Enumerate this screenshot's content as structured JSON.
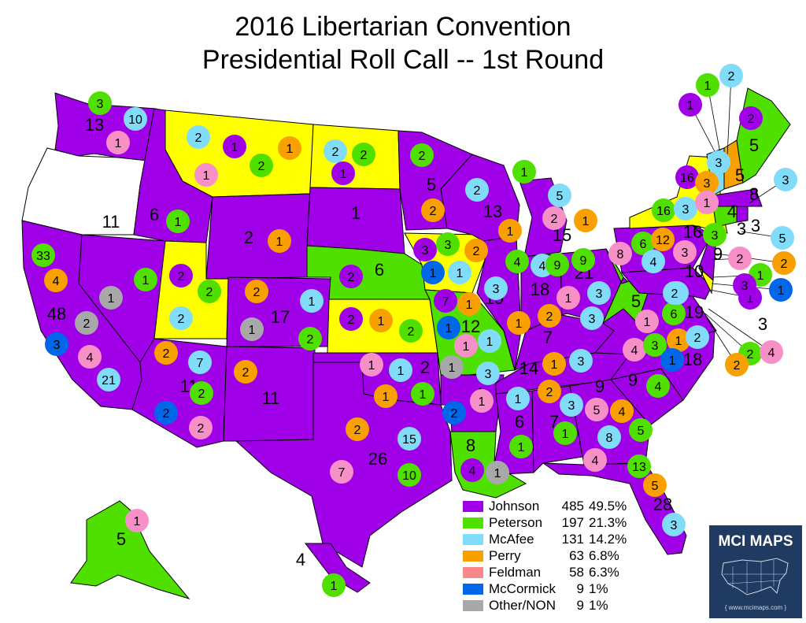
{
  "title": {
    "line1": "2016 Libertarian Convention",
    "line2": "Presidential Roll Call -- 1st Round"
  },
  "candidate_colors": {
    "Johnson": "#a000e8",
    "Peterson": "#4fe000",
    "McAfee": "#80dcf8",
    "Perry": "#f8a000",
    "Feldman": "#f890c8",
    "McCormick": "#0068e8",
    "Other/NON": "#a8a8a8",
    "tie": "#ffff00",
    "no_delegates": "#ffffff"
  },
  "legend": [
    {
      "name": "Johnson",
      "count": "485",
      "pct": "49.5%",
      "color": "#a000e8"
    },
    {
      "name": "Peterson",
      "count": "197",
      "pct": "21.3%",
      "color": "#4fe000"
    },
    {
      "name": "McAfee",
      "count": "131",
      "pct": "14.2%",
      "color": "#80dcf8"
    },
    {
      "name": "Perry",
      "count": "63",
      "pct": "6.8%",
      "color": "#f8a000"
    },
    {
      "name": "Feldman",
      "count": "58",
      "pct": "6.3%",
      "color": "#f88888"
    },
    {
      "name": "McCormick",
      "count": "9",
      "pct": "1%",
      "color": "#0068e8"
    },
    {
      "name": "Other/NON",
      "count": "9",
      "pct": "1%",
      "color": "#a8a8a8"
    }
  ],
  "states": [
    {
      "state": "WA",
      "winner": "Johnson",
      "labels": [
        {
          "c": "Johnson",
          "v": "13"
        },
        {
          "c": "Peterson",
          "v": "3"
        },
        {
          "c": "McAfee",
          "v": "10"
        },
        {
          "c": "Feldman",
          "v": "1"
        }
      ]
    },
    {
      "state": "OR",
      "winner": "none",
      "labels": []
    },
    {
      "state": "CA",
      "winner": "Johnson",
      "labels": [
        {
          "c": "Johnson",
          "v": "48"
        },
        {
          "c": "Peterson",
          "v": "33"
        },
        {
          "c": "Perry",
          "v": "4"
        },
        {
          "c": "Other/NON",
          "v": "2"
        },
        {
          "c": "McCormick",
          "v": "3"
        },
        {
          "c": "Feldman",
          "v": "4"
        },
        {
          "c": "McAfee",
          "v": "21"
        }
      ]
    },
    {
      "state": "NV",
      "winner": "Johnson",
      "labels": [
        {
          "c": "Johnson",
          "v": "11"
        },
        {
          "c": "Peterson",
          "v": "1"
        },
        {
          "c": "Other/NON",
          "v": "1"
        }
      ]
    },
    {
      "state": "ID",
      "winner": "Johnson",
      "labels": [
        {
          "c": "Johnson",
          "v": "6"
        },
        {
          "c": "Peterson",
          "v": "1"
        }
      ]
    },
    {
      "state": "MT",
      "winner": "tie",
      "labels": [
        {
          "c": "McAfee",
          "v": "2"
        },
        {
          "c": "Johnson",
          "v": "1"
        },
        {
          "c": "Perry",
          "v": "1"
        },
        {
          "c": "Peterson",
          "v": "2"
        },
        {
          "c": "Feldman",
          "v": "1"
        }
      ]
    },
    {
      "state": "WY",
      "winner": "Johnson",
      "labels": [
        {
          "c": "Johnson",
          "v": "2"
        },
        {
          "c": "Perry",
          "v": "1"
        }
      ]
    },
    {
      "state": "UT",
      "winner": "tie",
      "labels": [
        {
          "c": "Johnson",
          "v": "2"
        },
        {
          "c": "Peterson",
          "v": "2"
        },
        {
          "c": "McAfee",
          "v": "2"
        }
      ]
    },
    {
      "state": "CO",
      "winner": "Johnson",
      "labels": [
        {
          "c": "Johnson",
          "v": "17"
        },
        {
          "c": "Perry",
          "v": "2"
        },
        {
          "c": "McAfee",
          "v": "1"
        },
        {
          "c": "Other/NON",
          "v": "1"
        },
        {
          "c": "Peterson",
          "v": "2"
        }
      ]
    },
    {
      "state": "AZ",
      "winner": "Johnson",
      "labels": [
        {
          "c": "Johnson",
          "v": "11"
        },
        {
          "c": "Perry",
          "v": "2"
        },
        {
          "c": "McAfee",
          "v": "7"
        },
        {
          "c": "Peterson",
          "v": "2"
        },
        {
          "c": "McCormick",
          "v": "2"
        },
        {
          "c": "Feldman",
          "v": "2"
        }
      ]
    },
    {
      "state": "NM",
      "winner": "Johnson",
      "labels": [
        {
          "c": "Johnson",
          "v": "11"
        },
        {
          "c": "Perry",
          "v": "2"
        }
      ]
    },
    {
      "state": "ND",
      "winner": "tie",
      "labels": [
        {
          "c": "McAfee",
          "v": "2"
        },
        {
          "c": "Peterson",
          "v": "2"
        },
        {
          "c": "Johnson",
          "v": "1"
        }
      ]
    },
    {
      "state": "SD",
      "winner": "Johnson",
      "labels": [
        {
          "c": "Johnson",
          "v": "1"
        }
      ]
    },
    {
      "state": "NE",
      "winner": "Peterson",
      "labels": [
        {
          "c": "Peterson",
          "v": "6"
        },
        {
          "c": "Johnson",
          "v": "2"
        }
      ]
    },
    {
      "state": "KS",
      "winner": "tie",
      "labels": [
        {
          "c": "Johnson",
          "v": "2"
        },
        {
          "c": "Perry",
          "v": "1"
        },
        {
          "c": "Peterson",
          "v": "2"
        }
      ]
    },
    {
      "state": "OK",
      "winner": "Johnson",
      "labels": [
        {
          "c": "Johnson",
          "v": "2"
        },
        {
          "c": "Feldman",
          "v": "1"
        },
        {
          "c": "McAfee",
          "v": "1"
        },
        {
          "c": "Perry",
          "v": "1"
        },
        {
          "c": "Peterson",
          "v": "1"
        }
      ]
    },
    {
      "state": "TX",
      "winner": "Johnson",
      "labels": [
        {
          "c": "Johnson",
          "v": "26"
        },
        {
          "c": "Perry",
          "v": "2"
        },
        {
          "c": "McAfee",
          "v": "15"
        },
        {
          "c": "Feldman",
          "v": "7"
        },
        {
          "c": "Peterson",
          "v": "10"
        }
      ]
    },
    {
      "state": "MN",
      "winner": "Johnson",
      "labels": [
        {
          "c": "Johnson",
          "v": "5"
        },
        {
          "c": "Peterson",
          "v": "2"
        },
        {
          "c": "Perry",
          "v": "2"
        }
      ]
    },
    {
      "state": "IA",
      "winner": "tie",
      "labels": [
        {
          "c": "Johnson",
          "v": "3"
        },
        {
          "c": "Peterson",
          "v": "3"
        },
        {
          "c": "Perry",
          "v": "2"
        },
        {
          "c": "McCormick",
          "v": "1"
        },
        {
          "c": "McAfee",
          "v": "1"
        }
      ]
    },
    {
      "state": "MO",
      "winner": "Peterson",
      "labels": [
        {
          "c": "Peterson",
          "v": "12"
        },
        {
          "c": "Johnson",
          "v": "7"
        },
        {
          "c": "Perry",
          "v": "1"
        },
        {
          "c": "McCormick",
          "v": "1"
        },
        {
          "c": "Feldman",
          "v": "1"
        },
        {
          "c": "McAfee",
          "v": "1"
        }
      ]
    },
    {
      "state": "AR",
      "winner": "Johnson",
      "labels": [
        {
          "c": "Johnson",
          "v": "4"
        },
        {
          "c": "Other/NON",
          "v": "1"
        },
        {
          "c": "McAfee",
          "v": "3"
        },
        {
          "c": "Feldman",
          "v": "1"
        },
        {
          "c": "McCormick",
          "v": "2"
        }
      ]
    },
    {
      "state": "LA",
      "winner": "Peterson",
      "labels": [
        {
          "c": "Peterson",
          "v": "8"
        },
        {
          "c": "Johnson",
          "v": "4"
        },
        {
          "c": "Other/NON",
          "v": "1"
        }
      ]
    },
    {
      "state": "WI",
      "winner": "Johnson",
      "labels": [
        {
          "c": "Johnson",
          "v": "13"
        },
        {
          "c": "Peterson",
          "v": "1"
        },
        {
          "c": "McAfee",
          "v": "2"
        },
        {
          "c": "Perry",
          "v": "1"
        }
      ]
    },
    {
      "state": "IL",
      "winner": "Johnson",
      "labels": [
        {
          "c": "Johnson",
          "v": "19"
        },
        {
          "c": "Peterson",
          "v": "4"
        },
        {
          "c": "McAfee",
          "v": "3"
        },
        {
          "c": "Perry",
          "v": "1"
        }
      ]
    },
    {
      "state": "MI",
      "winner": "Johnson",
      "labels": [
        {
          "c": "Johnson",
          "v": "15"
        },
        {
          "c": "McAfee",
          "v": "5"
        },
        {
          "c": "Feldman",
          "v": "2"
        },
        {
          "c": "Perry",
          "v": "1"
        }
      ]
    },
    {
      "state": "IN",
      "winner": "Johnson",
      "labels": [
        {
          "c": "Johnson",
          "v": "18"
        },
        {
          "c": "McAfee",
          "v": "4"
        },
        {
          "c": "Peterson",
          "v": "9"
        },
        {
          "c": "Feldman",
          "v": "1"
        },
        {
          "c": "Perry",
          "v": "2"
        }
      ]
    },
    {
      "state": "OH",
      "winner": "Johnson",
      "labels": [
        {
          "c": "Johnson",
          "v": "21"
        },
        {
          "c": "Peterson",
          "v": "9"
        },
        {
          "c": "McAfee",
          "v": "3"
        }
      ]
    },
    {
      "state": "KY",
      "winner": "Johnson",
      "labels": [
        {
          "c": "Johnson",
          "v": "7"
        },
        {
          "c": "McAfee",
          "v": "3"
        }
      ]
    },
    {
      "state": "TN",
      "winner": "Johnson",
      "labels": [
        {
          "c": "Johnson",
          "v": "14"
        },
        {
          "c": "Perry",
          "v": "1"
        },
        {
          "c": "McAfee",
          "v": "3"
        }
      ]
    },
    {
      "state": "MS",
      "winner": "Johnson",
      "labels": [
        {
          "c": "Johnson",
          "v": "6"
        },
        {
          "c": "McAfee",
          "v": "1"
        },
        {
          "c": "Peterson",
          "v": "1"
        }
      ]
    },
    {
      "state": "AL",
      "winner": "Johnson",
      "labels": [
        {
          "c": "Johnson",
          "v": "7"
        },
        {
          "c": "Perry",
          "v": "2"
        },
        {
          "c": "McAfee",
          "v": "3"
        },
        {
          "c": "Peterson",
          "v": "1"
        }
      ]
    },
    {
      "state": "GA",
      "winner": "Johnson",
      "labels": [
        {
          "c": "Johnson",
          "v": "9"
        },
        {
          "c": "Feldman",
          "v": "5"
        },
        {
          "c": "Perry",
          "v": "4"
        },
        {
          "c": "McAfee",
          "v": "8"
        },
        {
          "c": "Peterson",
          "v": "5"
        }
      ]
    },
    {
      "state": "FL",
      "winner": "Johnson",
      "labels": [
        {
          "c": "Johnson",
          "v": "28"
        },
        {
          "c": "Feldman",
          "v": "4"
        },
        {
          "c": "Peterson",
          "v": "13"
        },
        {
          "c": "Perry",
          "v": "5"
        },
        {
          "c": "McAfee",
          "v": "3"
        }
      ]
    },
    {
      "state": "SC",
      "winner": "Johnson",
      "labels": [
        {
          "c": "Johnson",
          "v": "9"
        },
        {
          "c": "Peterson",
          "v": "4"
        }
      ]
    },
    {
      "state": "NC",
      "winner": "Johnson",
      "labels": [
        {
          "c": "Johnson",
          "v": "18"
        },
        {
          "c": "Feldman",
          "v": "4"
        },
        {
          "c": "Peterson",
          "v": "3"
        },
        {
          "c": "Perry",
          "v": "1"
        },
        {
          "c": "McAfee",
          "v": "2"
        },
        {
          "c": "McCormick",
          "v": "1"
        }
      ]
    },
    {
      "state": "VA",
      "winner": "Johnson",
      "labels": [
        {
          "c": "Johnson",
          "v": "19"
        },
        {
          "c": "Feldman",
          "v": "1"
        },
        {
          "c": "Peterson",
          "v": "6"
        },
        {
          "c": "McAfee",
          "v": "2"
        }
      ]
    },
    {
      "state": "WV",
      "winner": "Peterson",
      "labels": [
        {
          "c": "Peterson",
          "v": "5"
        }
      ]
    },
    {
      "state": "PA",
      "winner": "Johnson",
      "labels": [
        {
          "c": "Johnson",
          "v": "16"
        },
        {
          "c": "Peterson",
          "v": "6"
        },
        {
          "c": "Perry",
          "v": "12"
        },
        {
          "c": "Feldman",
          "v": "8"
        },
        {
          "c": "McAfee",
          "v": "4"
        },
        {
          "c": "Feldman",
          "v": "3"
        }
      ]
    },
    {
      "state": "NY",
      "winner": "tie",
      "labels": [
        {
          "c": "Johnson",
          "v": "16"
        },
        {
          "c": "Perry",
          "v": "3"
        },
        {
          "c": "Peterson",
          "v": "16"
        },
        {
          "c": "McAfee",
          "v": "3"
        },
        {
          "c": "Feldman",
          "v": "1"
        }
      ]
    },
    {
      "state": "NJ",
      "winner": "Johnson",
      "labels": [
        {
          "c": "Johnson",
          "v": "9"
        },
        {
          "c": "Peterson",
          "v": "3"
        },
        {
          "c": "Johnson",
          "v": "3"
        }
      ]
    },
    {
      "state": "MD",
      "winner": "Johnson",
      "labels": [
        {
          "c": "Johnson",
          "v": "10"
        },
        {
          "c": "McAfee",
          "v": "2"
        }
      ]
    },
    {
      "state": "DE",
      "winner": "tie",
      "labels": []
    },
    {
      "state": "CT",
      "winner": "Peterson",
      "labels": [
        {
          "c": "Peterson",
          "v": "4"
        }
      ]
    },
    {
      "state": "RI",
      "winner": "Johnson",
      "labels": [
        {
          "c": "Johnson",
          "v": "3"
        }
      ]
    },
    {
      "state": "MA",
      "winner": "Johnson",
      "labels": [
        {
          "c": "Johnson",
          "v": "8"
        }
      ]
    },
    {
      "state": "VT",
      "winner": "McAfee",
      "labels": [
        {
          "c": "McAfee",
          "v": "3"
        }
      ]
    },
    {
      "state": "NH",
      "winner": "Perry",
      "labels": [
        {
          "c": "Perry",
          "v": "5"
        }
      ]
    },
    {
      "state": "ME",
      "winner": "Peterson",
      "labels": [
        {
          "c": "Peterson",
          "v": "5"
        },
        {
          "c": "Johnson",
          "v": "2"
        },
        {
          "c": "Johnson",
          "v": "1"
        },
        {
          "c": "Peterson",
          "v": "1"
        },
        {
          "c": "McAfee",
          "v": "2"
        }
      ]
    },
    {
      "state": "AK",
      "winner": "Peterson",
      "labels": [
        {
          "c": "Peterson",
          "v": "5"
        },
        {
          "c": "Feldman",
          "v": "1"
        }
      ]
    },
    {
      "state": "HI",
      "winner": "Johnson",
      "labels": [
        {
          "c": "Johnson",
          "v": "4"
        },
        {
          "c": "Peterson",
          "v": "1"
        }
      ]
    },
    {
      "state": "DC/offshore",
      "winner": "Johnson",
      "labels": [
        {
          "c": "McAfee",
          "v": "3"
        },
        {
          "c": "McAfee",
          "v": "5"
        },
        {
          "c": "Perry",
          "v": "2"
        },
        {
          "c": "Feldman",
          "v": "2"
        },
        {
          "c": "Peterson",
          "v": "1"
        },
        {
          "c": "McCormick",
          "v": "1"
        },
        {
          "c": "Johnson",
          "v": "1"
        },
        {
          "c": "Johnson",
          "v": "3"
        },
        {
          "c": "Peterson",
          "v": "2"
        },
        {
          "c": "Feldman",
          "v": "4"
        },
        {
          "c": "Perry",
          "v": "2"
        },
        {
          "c": "Johnson",
          "v": "3"
        }
      ]
    }
  ],
  "branding": {
    "name": "MCI MAPS",
    "url": "{ www.mcimaps.com }"
  }
}
